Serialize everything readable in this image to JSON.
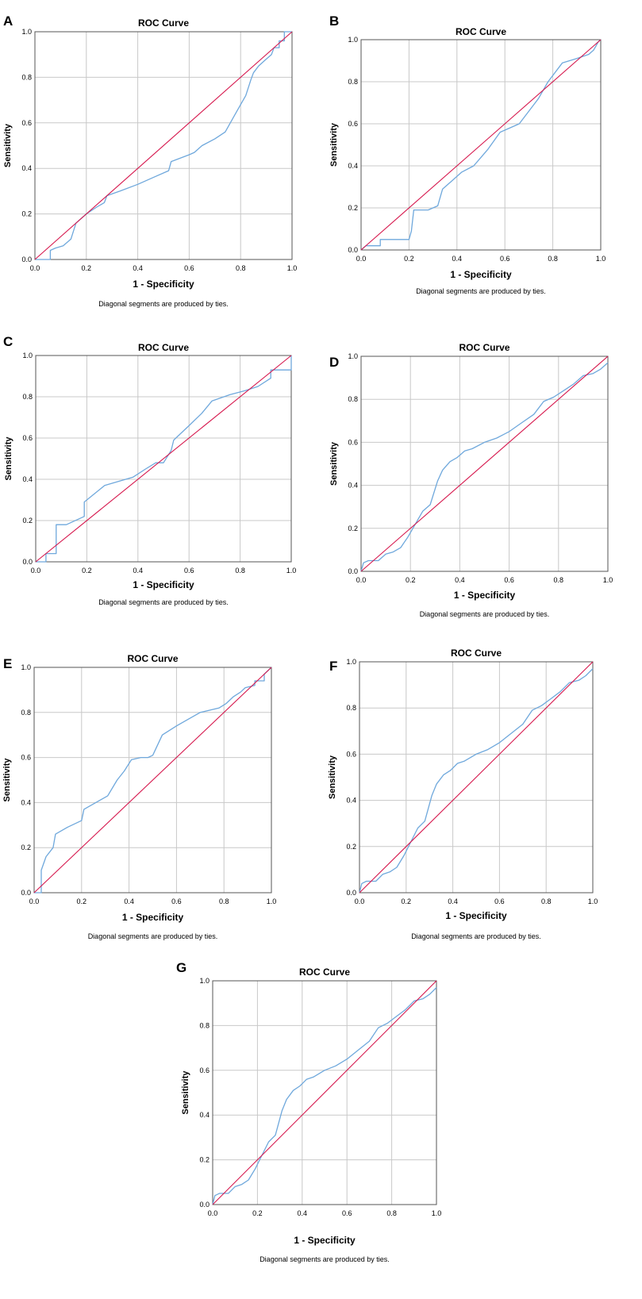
{
  "colors": {
    "roc": "#6fa8dc",
    "reference": "#d6174d",
    "grid": "#c8c8c8",
    "frame": "#555555"
  },
  "chart_data": [
    {
      "type": "line",
      "panel": "A",
      "title": "ROC Curve",
      "xlabel": "1 - Specificity",
      "ylabel": "Sensitivity",
      "note": "Diagonal segments are produced by ties.",
      "xlim": [
        0,
        1
      ],
      "ylim": [
        0,
        1
      ],
      "ticks": [
        "0.0",
        "0.2",
        "0.4",
        "0.6",
        "0.8",
        "1.0"
      ],
      "series": [
        {
          "name": "ROC",
          "x": [
            0,
            0.06,
            0.06,
            0.08,
            0.11,
            0.14,
            0.16,
            0.2,
            0.24,
            0.27,
            0.28,
            0.33,
            0.4,
            0.46,
            0.52,
            0.53,
            0.6,
            0.62,
            0.65,
            0.7,
            0.74,
            0.78,
            0.82,
            0.84,
            0.85,
            0.87,
            0.9,
            0.92,
            0.93,
            0.95,
            0.95,
            0.97,
            0.97,
            1
          ],
          "y": [
            0,
            0,
            0.04,
            0.05,
            0.06,
            0.09,
            0.16,
            0.2,
            0.23,
            0.25,
            0.28,
            0.3,
            0.33,
            0.36,
            0.39,
            0.43,
            0.46,
            0.47,
            0.5,
            0.53,
            0.56,
            0.64,
            0.72,
            0.79,
            0.82,
            0.85,
            0.88,
            0.9,
            0.93,
            0.93,
            0.96,
            0.96,
            1,
            1
          ]
        },
        {
          "name": "Reference Line",
          "x": [
            0,
            1
          ],
          "y": [
            0,
            1
          ]
        }
      ]
    },
    {
      "type": "line",
      "panel": "B",
      "title": "ROC Curve",
      "xlabel": "1 - Specificity",
      "ylabel": "Sensitivity",
      "note": "Diagonal segments are produced by ties.",
      "xlim": [
        0,
        1
      ],
      "ylim": [
        0,
        1
      ],
      "ticks": [
        "0.0",
        "0.2",
        "0.4",
        "0.6",
        "0.8",
        "1.0"
      ],
      "series": [
        {
          "name": "ROC",
          "x": [
            0,
            0.02,
            0.08,
            0.08,
            0.2,
            0.21,
            0.22,
            0.28,
            0.32,
            0.34,
            0.38,
            0.42,
            0.47,
            0.5,
            0.53,
            0.58,
            0.6,
            0.66,
            0.7,
            0.74,
            0.78,
            0.84,
            0.9,
            0.95,
            0.96,
            0.97,
            0.98,
            0.99,
            1
          ],
          "y": [
            0,
            0.02,
            0.02,
            0.05,
            0.05,
            0.09,
            0.19,
            0.19,
            0.21,
            0.29,
            0.33,
            0.37,
            0.4,
            0.44,
            0.48,
            0.56,
            0.57,
            0.6,
            0.66,
            0.72,
            0.8,
            0.89,
            0.91,
            0.93,
            0.94,
            0.95,
            0.97,
            0.99,
            1
          ]
        },
        {
          "name": "Reference Line",
          "x": [
            0,
            1
          ],
          "y": [
            0,
            1
          ]
        }
      ]
    },
    {
      "type": "line",
      "panel": "C",
      "title": "ROC Curve",
      "xlabel": "1 - Specificity",
      "ylabel": "Sensitivity",
      "note": "Diagonal segments are produced by ties.",
      "xlim": [
        0,
        1
      ],
      "ylim": [
        0,
        1
      ],
      "ticks": [
        "0.0",
        "0.2",
        "0.4",
        "0.6",
        "0.8",
        "1.0"
      ],
      "series": [
        {
          "name": "ROC",
          "x": [
            0,
            0.04,
            0.04,
            0.08,
            0.08,
            0.12,
            0.19,
            0.19,
            0.27,
            0.38,
            0.43,
            0.47,
            0.5,
            0.53,
            0.54,
            0.6,
            0.65,
            0.69,
            0.76,
            0.82,
            0.87,
            0.92,
            0.92,
            1,
            1
          ],
          "y": [
            0,
            0,
            0.04,
            0.04,
            0.18,
            0.18,
            0.22,
            0.29,
            0.37,
            0.41,
            0.45,
            0.48,
            0.48,
            0.54,
            0.59,
            0.66,
            0.72,
            0.78,
            0.81,
            0.83,
            0.85,
            0.89,
            0.93,
            0.93,
            1
          ]
        },
        {
          "name": "Reference Line",
          "x": [
            0,
            1
          ],
          "y": [
            0,
            1
          ]
        }
      ]
    },
    {
      "type": "line",
      "panel": "D",
      "title": "ROC Curve",
      "xlabel": "1 - Specificity",
      "ylabel": "Sensitivity",
      "note": "Diagonal segments are produced by ties.",
      "xlim": [
        0,
        1
      ],
      "ylim": [
        0,
        1
      ],
      "ticks": [
        "0.0",
        "0.2",
        "0.4",
        "0.6",
        "0.8",
        "1.0"
      ],
      "series": [
        {
          "name": "ROC",
          "x": [
            0,
            0.01,
            0.03,
            0.07,
            0.1,
            0.13,
            0.16,
            0.19,
            0.22,
            0.25,
            0.28,
            0.31,
            0.33,
            0.36,
            0.39,
            0.42,
            0.45,
            0.5,
            0.55,
            0.6,
            0.65,
            0.7,
            0.74,
            0.78,
            0.82,
            0.86,
            0.9,
            0.94,
            0.97,
            1
          ],
          "y": [
            0,
            0.04,
            0.05,
            0.05,
            0.08,
            0.09,
            0.11,
            0.16,
            0.22,
            0.28,
            0.31,
            0.42,
            0.47,
            0.51,
            0.53,
            0.56,
            0.57,
            0.6,
            0.62,
            0.65,
            0.69,
            0.73,
            0.79,
            0.81,
            0.84,
            0.87,
            0.91,
            0.92,
            0.94,
            0.97
          ]
        },
        {
          "name": "Reference Line",
          "x": [
            0,
            1
          ],
          "y": [
            0,
            1
          ]
        }
      ]
    },
    {
      "type": "line",
      "panel": "E",
      "title": "ROC Curve",
      "xlabel": "1 - Specificity",
      "ylabel": "Sensitivity",
      "note": "Diagonal segments are produced by ties.",
      "xlim": [
        0,
        1
      ],
      "ylim": [
        0,
        1
      ],
      "ticks": [
        "0.0",
        "0.2",
        "0.4",
        "0.6",
        "0.8",
        "1.0"
      ],
      "series": [
        {
          "name": "ROC",
          "x": [
            0,
            0.03,
            0.03,
            0.05,
            0.08,
            0.09,
            0.14,
            0.2,
            0.21,
            0.26,
            0.31,
            0.35,
            0.38,
            0.41,
            0.45,
            0.48,
            0.5,
            0.54,
            0.6,
            0.65,
            0.7,
            0.78,
            0.81,
            0.84,
            0.87,
            0.89,
            0.93,
            0.93,
            0.97,
            0.97,
            1
          ],
          "y": [
            0,
            0,
            0.1,
            0.16,
            0.2,
            0.26,
            0.29,
            0.32,
            0.37,
            0.4,
            0.43,
            0.5,
            0.54,
            0.59,
            0.6,
            0.6,
            0.61,
            0.7,
            0.74,
            0.77,
            0.8,
            0.82,
            0.84,
            0.87,
            0.89,
            0.91,
            0.92,
            0.94,
            0.94,
            0.97,
            1
          ]
        },
        {
          "name": "Reference Line",
          "x": [
            0,
            1
          ],
          "y": [
            0,
            1
          ]
        }
      ]
    },
    {
      "type": "line",
      "panel": "F",
      "title": "ROC Curve",
      "xlabel": "1 - Specificity",
      "ylabel": "Sensitivity",
      "note": "Diagonal segments are produced by ties.",
      "xlim": [
        0,
        1
      ],
      "ylim": [
        0,
        1
      ],
      "ticks": [
        "0.0",
        "0.2",
        "0.4",
        "0.6",
        "0.8",
        "1.0"
      ],
      "series": [
        {
          "name": "ROC",
          "x": [
            0,
            0.01,
            0.03,
            0.07,
            0.1,
            0.13,
            0.16,
            0.19,
            0.22,
            0.25,
            0.28,
            0.31,
            0.33,
            0.36,
            0.39,
            0.42,
            0.45,
            0.5,
            0.55,
            0.6,
            0.65,
            0.7,
            0.74,
            0.78,
            0.82,
            0.86,
            0.9,
            0.94,
            0.97,
            1
          ],
          "y": [
            0,
            0.04,
            0.05,
            0.05,
            0.08,
            0.09,
            0.11,
            0.16,
            0.22,
            0.28,
            0.31,
            0.42,
            0.47,
            0.51,
            0.53,
            0.56,
            0.57,
            0.6,
            0.62,
            0.65,
            0.69,
            0.73,
            0.79,
            0.81,
            0.84,
            0.87,
            0.91,
            0.92,
            0.94,
            0.97
          ]
        },
        {
          "name": "Reference Line",
          "x": [
            0,
            1
          ],
          "y": [
            0,
            1
          ]
        }
      ]
    },
    {
      "type": "line",
      "panel": "G",
      "title": "ROC Curve",
      "xlabel": "1 - Specificity",
      "ylabel": "Sensitivity",
      "note": "Diagonal segments are produced by ties.",
      "xlim": [
        0,
        1
      ],
      "ylim": [
        0,
        1
      ],
      "ticks": [
        "0.0",
        "0.2",
        "0.4",
        "0.6",
        "0.8",
        "1.0"
      ],
      "series": [
        {
          "name": "ROC",
          "x": [
            0,
            0.01,
            0.03,
            0.07,
            0.1,
            0.13,
            0.16,
            0.19,
            0.22,
            0.25,
            0.28,
            0.31,
            0.33,
            0.36,
            0.39,
            0.42,
            0.45,
            0.5,
            0.55,
            0.6,
            0.65,
            0.7,
            0.74,
            0.78,
            0.82,
            0.86,
            0.9,
            0.94,
            0.97,
            1
          ],
          "y": [
            0,
            0.04,
            0.05,
            0.05,
            0.08,
            0.09,
            0.11,
            0.16,
            0.22,
            0.28,
            0.31,
            0.42,
            0.47,
            0.51,
            0.53,
            0.56,
            0.57,
            0.6,
            0.62,
            0.65,
            0.69,
            0.73,
            0.79,
            0.81,
            0.84,
            0.87,
            0.91,
            0.92,
            0.94,
            0.97
          ]
        },
        {
          "name": "Reference Line",
          "x": [
            0,
            1
          ],
          "y": [
            0,
            1
          ]
        }
      ]
    }
  ]
}
